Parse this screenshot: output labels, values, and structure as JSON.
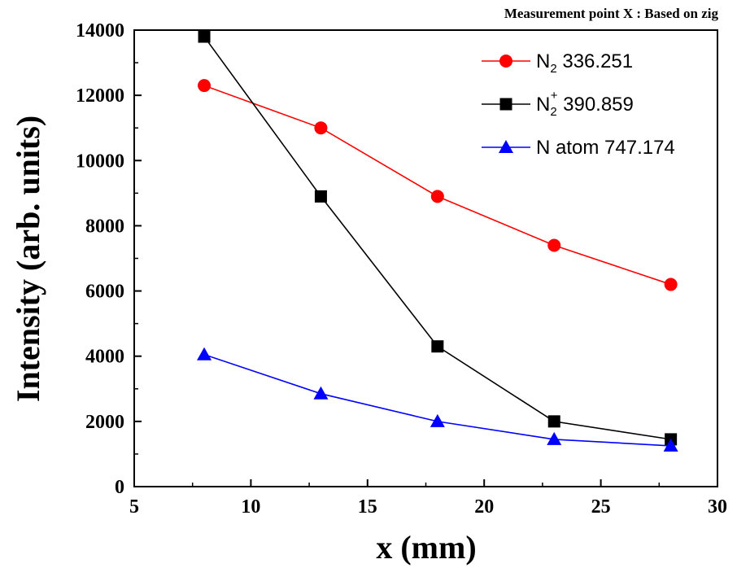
{
  "chart_data": {
    "type": "line",
    "title": "",
    "subtitle": "Measurement point X : Based on zig",
    "xlabel": "x (mm)",
    "ylabel": "Intensity (arb. units)",
    "xlim": [
      5,
      30
    ],
    "ylim": [
      0,
      14000
    ],
    "xticks": [
      5,
      10,
      15,
      20,
      25,
      30
    ],
    "yticks": [
      0,
      2000,
      4000,
      6000,
      8000,
      10000,
      12000,
      14000
    ],
    "grid": false,
    "legend_position": "top-right",
    "series": [
      {
        "legend": {
          "base": "N",
          "sub": "2",
          "sup": "",
          "rest": " 336.251"
        },
        "color": "#ff0000",
        "marker": "circle",
        "x": [
          8,
          13,
          18,
          23,
          28
        ],
        "y": [
          12300,
          11000,
          8900,
          7400,
          6200
        ]
      },
      {
        "legend": {
          "base": "N",
          "sub": "2",
          "sup": "+",
          "rest": " 390.859"
        },
        "color": "#000000",
        "marker": "square",
        "x": [
          8,
          13,
          18,
          23,
          28
        ],
        "y": [
          13800,
          8900,
          4300,
          2000,
          1450
        ]
      },
      {
        "legend": {
          "base": "N atom 747.174",
          "sub": "",
          "sup": "",
          "rest": ""
        },
        "color": "#0000ff",
        "marker": "triangle",
        "x": [
          8,
          13,
          18,
          23,
          28
        ],
        "y": [
          4050,
          2850,
          2000,
          1450,
          1250
        ]
      }
    ]
  }
}
